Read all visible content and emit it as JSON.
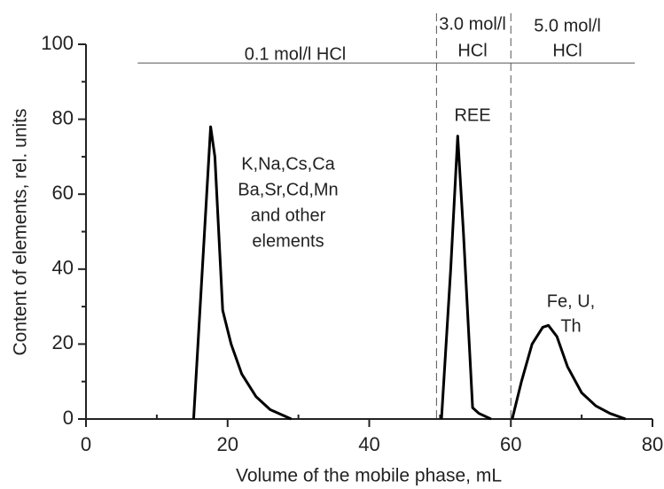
{
  "chart_data": {
    "type": "line",
    "xlabel": "Volume of the mobile phase, mL",
    "ylabel": "Content of elements, rel. units",
    "xlim": [
      0,
      80
    ],
    "xticks": [
      0,
      20,
      40,
      60,
      80
    ],
    "xminor": [
      10,
      30,
      50,
      70
    ],
    "ylim": [
      0,
      100
    ],
    "yticks": [
      0,
      20,
      40,
      60,
      80,
      100
    ],
    "yminor": [
      10,
      30,
      50,
      70,
      90
    ],
    "color": "#000000",
    "series": [
      {
        "x": [
          15.2,
          17.6,
          18.2,
          19.3,
          20.5,
          22,
          24,
          26,
          29
        ],
        "values": [
          0,
          78,
          70,
          29,
          20,
          12,
          6,
          2.5,
          0
        ]
      },
      {
        "x": [
          50.2,
          51.5,
          52.5,
          53.3,
          54.6,
          55.5,
          57.2
        ],
        "values": [
          0,
          40,
          75.5,
          50,
          3,
          1.5,
          0
        ]
      },
      {
        "x": [
          60.2,
          61.5,
          63,
          64.5,
          65.3,
          66.5,
          68,
          70,
          72,
          74,
          76.2
        ],
        "values": [
          0,
          10,
          20,
          24.5,
          25,
          22,
          14,
          7,
          3.5,
          1.5,
          0
        ]
      }
    ],
    "vlines": [
      49.5,
      60
    ],
    "hline": {
      "y": 95,
      "xmin": 7.3,
      "xmax": 77.5
    },
    "annotations": [
      [
        "0.1 mol/l  HCl"
      ],
      [
        "3.0 mol/l",
        "HCl"
      ],
      [
        "5.0 mol/l",
        "HCl"
      ],
      [
        "REE"
      ],
      [
        "K,Na,Cs,Ca",
        "Ba,Sr,Cd,Mn",
        "and other",
        "elements"
      ],
      [
        "Fe, U,",
        "Th"
      ]
    ]
  }
}
